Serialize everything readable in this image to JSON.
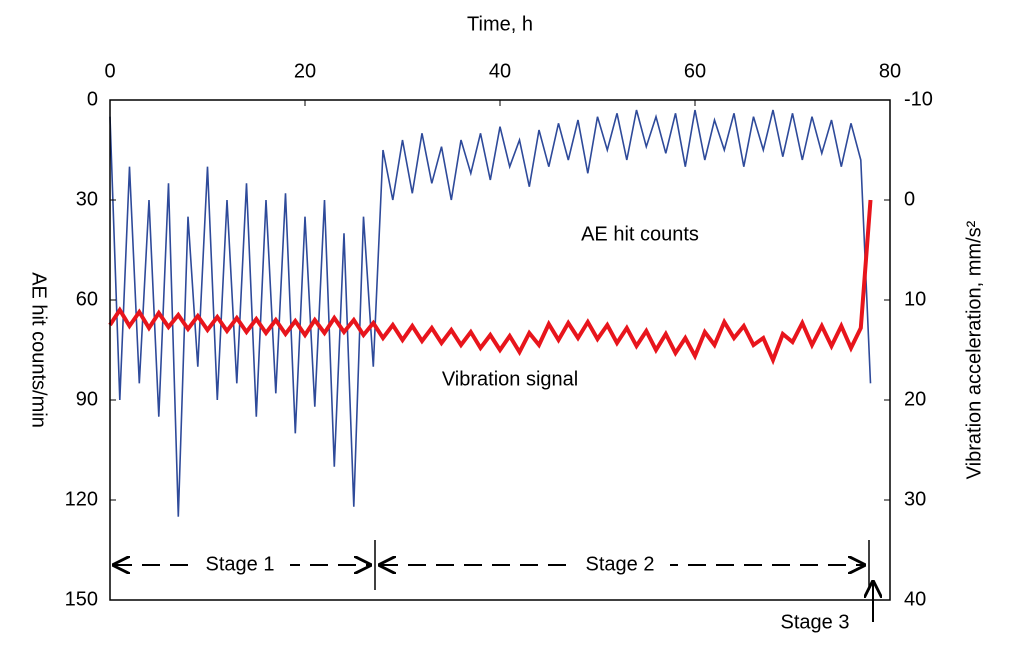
{
  "chart_data": {
    "type": "line",
    "xlabel": "Time, h",
    "ylabel": "AE hit counts/min",
    "y2label": "Vibration acceleration, mm/s²",
    "x": [
      0,
      1,
      2,
      3,
      4,
      5,
      6,
      7,
      8,
      9,
      10,
      11,
      12,
      13,
      14,
      15,
      16,
      17,
      18,
      19,
      20,
      21,
      22,
      23,
      24,
      25,
      26,
      27,
      28,
      29,
      30,
      31,
      32,
      33,
      34,
      35,
      36,
      37,
      38,
      39,
      40,
      41,
      42,
      43,
      44,
      45,
      46,
      47,
      48,
      49,
      50,
      51,
      52,
      53,
      54,
      55,
      56,
      57,
      58,
      59,
      60,
      61,
      62,
      63,
      64,
      65,
      66,
      67,
      68,
      69,
      70,
      71,
      72,
      73,
      74,
      75,
      76,
      77,
      78
    ],
    "series": [
      {
        "name": "AE hit counts",
        "color": "#2e4a9a",
        "axis": "y",
        "values": [
          5,
          90,
          20,
          85,
          30,
          95,
          25,
          125,
          35,
          80,
          20,
          90,
          30,
          85,
          25,
          95,
          30,
          88,
          28,
          100,
          35,
          92,
          30,
          110,
          40,
          122,
          35,
          80,
          15,
          30,
          12,
          28,
          10,
          25,
          14,
          30,
          12,
          22,
          10,
          24,
          8,
          20,
          12,
          26,
          9,
          20,
          7,
          18,
          6,
          22,
          5,
          15,
          4,
          18,
          3,
          14,
          5,
          16,
          4,
          20,
          3,
          18,
          6,
          15,
          4,
          20,
          5,
          15,
          3,
          17,
          4,
          18,
          5,
          16,
          6,
          20,
          7,
          18,
          85
        ]
      },
      {
        "name": "Vibration signal",
        "color": "#e8151c",
        "axis": "y2",
        "values": [
          12.5,
          11,
          12.6,
          11.2,
          12.8,
          11.3,
          12.7,
          11.5,
          12.9,
          11.6,
          13,
          11.7,
          13.1,
          11.8,
          13.2,
          11.9,
          13.3,
          12,
          13.4,
          12.1,
          13.5,
          12,
          13.3,
          11.8,
          13.2,
          12,
          13.5,
          12.3,
          13.8,
          12.5,
          14,
          12.6,
          14.1,
          12.8,
          14.3,
          13,
          14.5,
          13.2,
          14.8,
          13.5,
          15,
          13.6,
          15.2,
          13.3,
          14.5,
          12.4,
          14,
          12.3,
          13.8,
          12.2,
          13.9,
          12.5,
          14.3,
          12.8,
          14.6,
          13.1,
          15,
          13.4,
          15.3,
          13.8,
          15.6,
          13.2,
          14.5,
          12.2,
          13.8,
          12.6,
          14.5,
          13.8,
          16,
          13.4,
          14.2,
          12.3,
          14.5,
          12.6,
          14.6,
          12.6,
          14.8,
          12.8,
          0
        ]
      }
    ],
    "xlim": [
      0,
      80
    ],
    "xticks": [
      0,
      20,
      40,
      60,
      80
    ],
    "ylim": [
      0,
      150
    ],
    "yticks": [
      0,
      30,
      60,
      90,
      120,
      150
    ],
    "y2lim": [
      -10,
      40
    ],
    "y2ticks": [
      -10,
      0,
      10,
      20,
      30,
      40
    ],
    "stages": [
      "Stage 1",
      "Stage 2",
      "Stage 3"
    ]
  }
}
